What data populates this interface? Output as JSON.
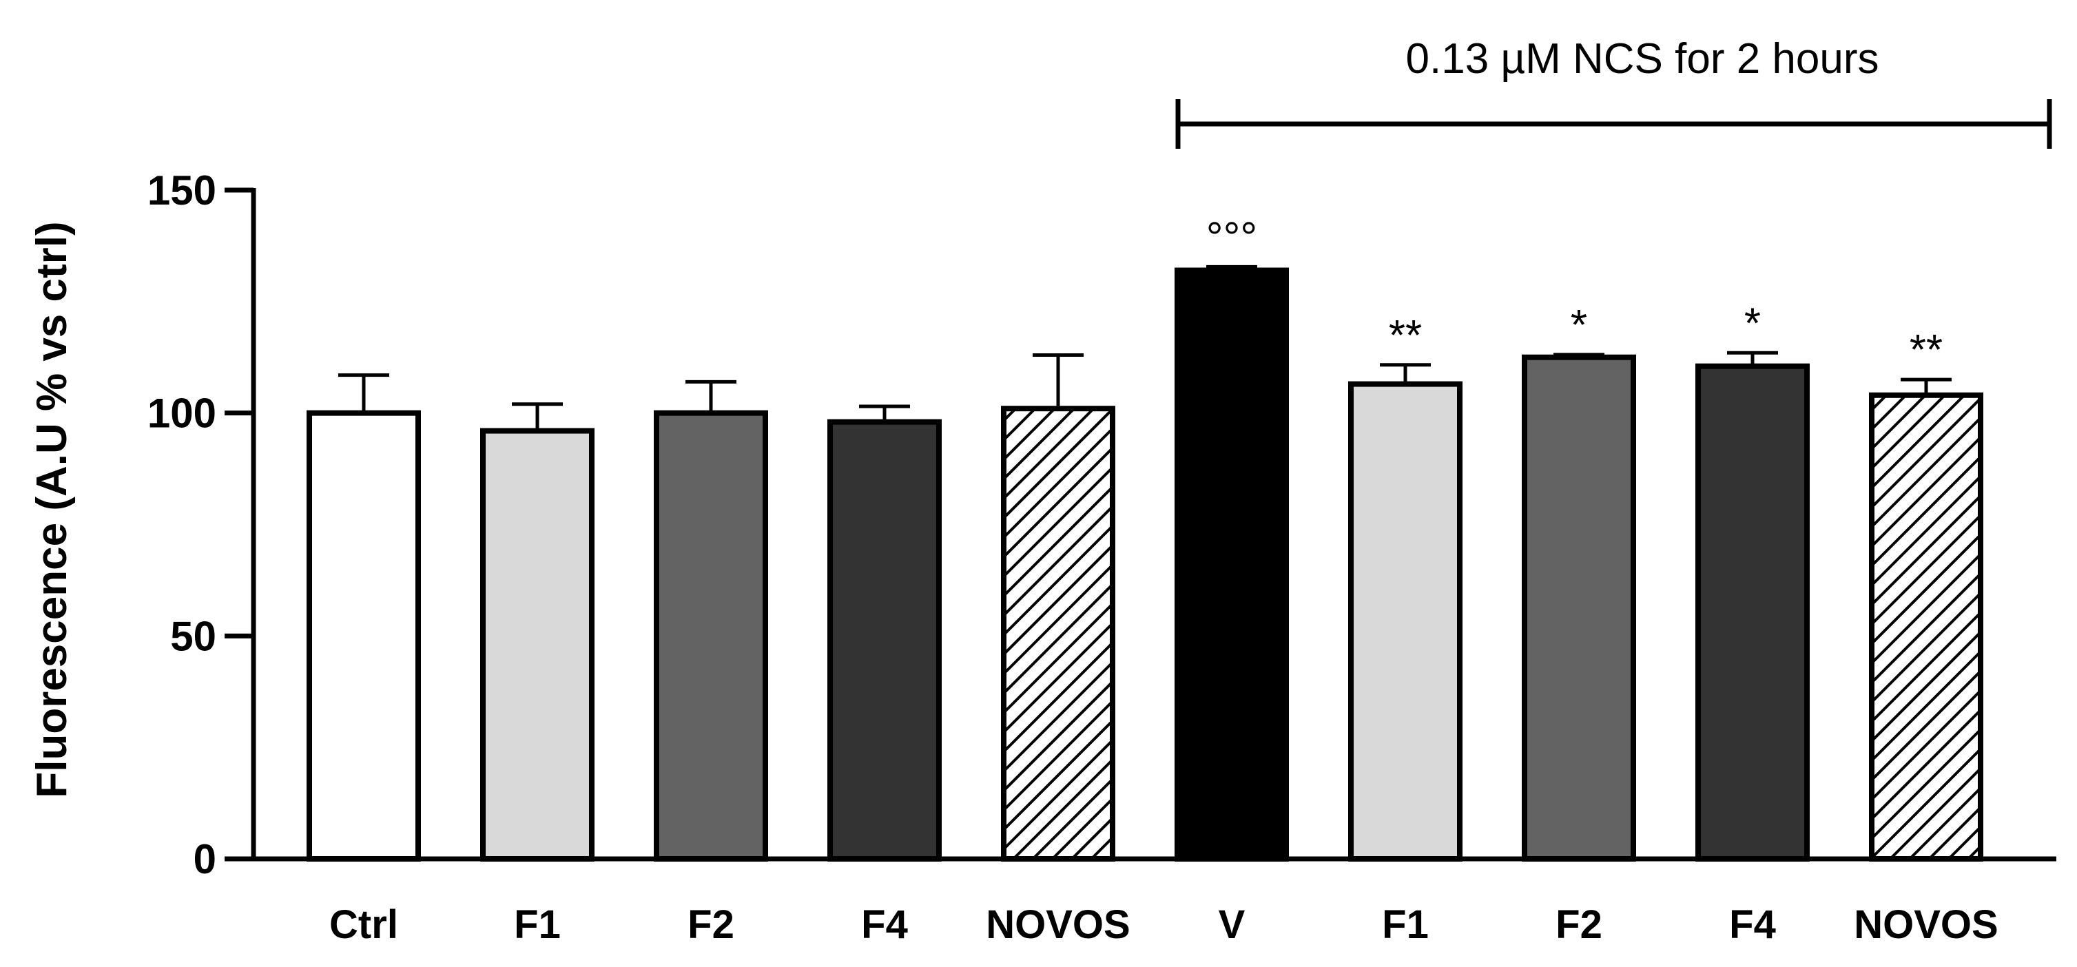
{
  "chart_data": {
    "type": "bar",
    "title": "",
    "xlabel": "",
    "ylabel": "Fluorescence (A.U % vs ctrl)",
    "ylim": [
      0,
      150
    ],
    "yticks": [
      0,
      50,
      100,
      150
    ],
    "grid": false,
    "treatment_label": "0.13 µM NCS for 2 hours",
    "treatment_start_index": 5,
    "categories": [
      "Ctrl",
      "F1",
      "F2",
      "F4",
      "NOVOS",
      "V",
      "F1",
      "F2",
      "F4",
      "NOVOS"
    ],
    "values": [
      100,
      96,
      100,
      98,
      101,
      132,
      106.5,
      112.5,
      110.5,
      104
    ],
    "errors": [
      8.5,
      6,
      7,
      3.5,
      12,
      0.8,
      4.3,
      0.6,
      3,
      3.5
    ],
    "significance": [
      "",
      "",
      "",
      "",
      "",
      "°°°",
      "**",
      "*",
      "*",
      "**"
    ],
    "bar_styles": [
      {
        "fill": "#ffffff",
        "pattern": "none"
      },
      {
        "fill": "#d9d9d9",
        "pattern": "none"
      },
      {
        "fill": "#636363",
        "pattern": "none"
      },
      {
        "fill": "#333333",
        "pattern": "none"
      },
      {
        "fill": "#ffffff",
        "pattern": "hatch"
      },
      {
        "fill": "#000000",
        "pattern": "none"
      },
      {
        "fill": "#d9d9d9",
        "pattern": "none"
      },
      {
        "fill": "#636363",
        "pattern": "none"
      },
      {
        "fill": "#333333",
        "pattern": "none"
      },
      {
        "fill": "#ffffff",
        "pattern": "hatch"
      }
    ]
  }
}
